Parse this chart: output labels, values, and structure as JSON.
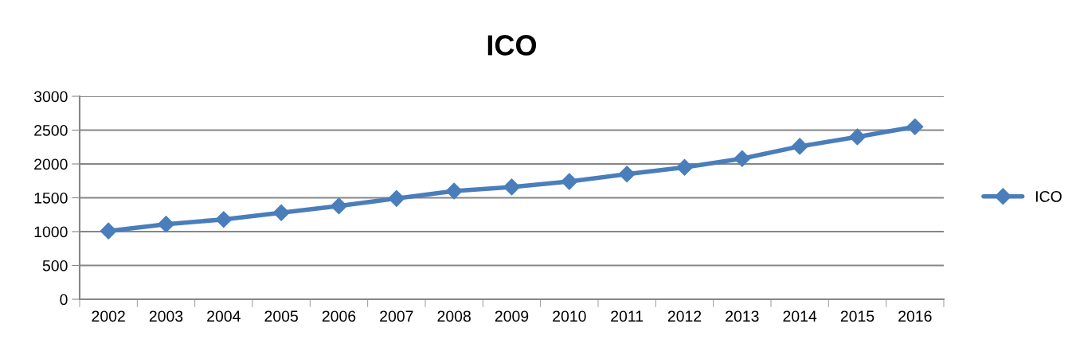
{
  "chart_data": {
    "type": "line",
    "title": "ICO",
    "categories": [
      "2002",
      "2003",
      "2004",
      "2005",
      "2006",
      "2007",
      "2008",
      "2009",
      "2010",
      "2011",
      "2012",
      "2013",
      "2014",
      "2015",
      "2016"
    ],
    "series": [
      {
        "name": "ICO",
        "color": "#4a7ebb",
        "values": [
          1010,
          1110,
          1180,
          1280,
          1380,
          1490,
          1600,
          1660,
          1740,
          1850,
          1950,
          2080,
          2260,
          2400,
          2550
        ]
      }
    ],
    "ylim": [
      0,
      3000
    ],
    "yticks": [
      0,
      500,
      1000,
      1500,
      2000,
      2500,
      3000
    ],
    "grid": "y",
    "legend": "right",
    "marker": "diamond",
    "line_style": "solid"
  }
}
